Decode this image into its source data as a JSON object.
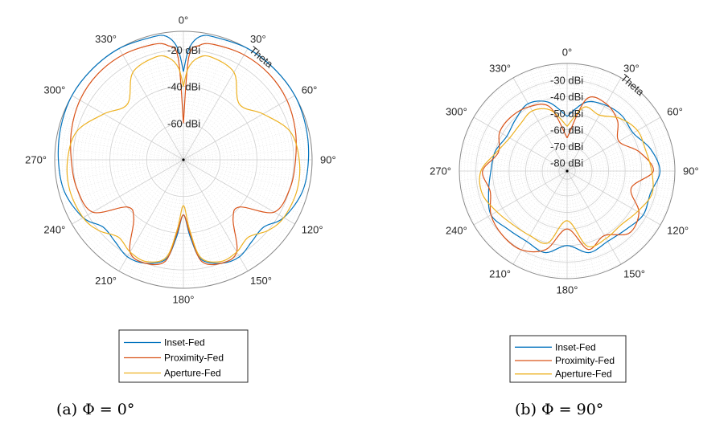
{
  "chart_data": [
    {
      "type": "polar-line",
      "caption": "(a) Φ = 0°",
      "theta_axis_label": "Theta",
      "theta_ticks": [
        "0°",
        "30°",
        "60°",
        "90°",
        "120°",
        "150°",
        "180°",
        "210°",
        "240°",
        "270°",
        "300°",
        "330°"
      ],
      "r_ticks": [
        {
          "value": -20,
          "label": "-20 dBi"
        },
        {
          "value": -40,
          "label": "-40 dBi"
        },
        {
          "value": -60,
          "label": "-60 dBi"
        }
      ],
      "rlim": [
        -80,
        -10
      ],
      "grid": true,
      "theta_deg": [
        0,
        3,
        8,
        15,
        30,
        45,
        60,
        75,
        90,
        105,
        120,
        130,
        140,
        150,
        160,
        170,
        175,
        180
      ],
      "series": [
        {
          "name": "Inset-Fed",
          "color": "#0072BD",
          "values": [
            -32,
            -19,
            -12,
            -11,
            -10,
            -9.5,
            -10,
            -11,
            -12,
            -13,
            -17,
            -23,
            -22,
            -19,
            -20,
            -25,
            -38,
            -50
          ]
        },
        {
          "name": "Proximity-Fed",
          "color": "#D95319",
          "values": [
            -60,
            -24,
            -17,
            -15,
            -14,
            -14,
            -15,
            -17,
            -19,
            -20,
            -23,
            -40,
            -38,
            -22,
            -20,
            -24,
            -40,
            -50
          ]
        },
        {
          "name": "Aperture-Fed",
          "color": "#EDB120",
          "values": [
            -40,
            -30,
            -24,
            -22,
            -25,
            -37,
            -30,
            -20,
            -17,
            -16,
            -17,
            -20,
            -25,
            -22,
            -21,
            -26,
            -42,
            -55
          ]
        }
      ]
    },
    {
      "type": "polar-line",
      "caption": "(b) Φ = 90°",
      "theta_axis_label": "Theta",
      "theta_ticks": [
        "0°",
        "30°",
        "60°",
        "90°",
        "120°",
        "150°",
        "180°",
        "210°",
        "240°",
        "270°",
        "300°",
        "330°"
      ],
      "r_ticks": [
        {
          "value": -30,
          "label": "-30 dBi"
        },
        {
          "value": -40,
          "label": "-40 dBi"
        },
        {
          "value": -50,
          "label": "-50 dBi"
        },
        {
          "value": -60,
          "label": "-60 dBi"
        },
        {
          "value": -70,
          "label": "-70 dBi"
        },
        {
          "value": -80,
          "label": "-80 dBi"
        }
      ],
      "rlim": [
        -85,
        -20
      ],
      "grid": true,
      "theta_deg": [
        0,
        15,
        30,
        45,
        60,
        75,
        90,
        105,
        120,
        135,
        150,
        165,
        180,
        195,
        210,
        225,
        240,
        255,
        270,
        285,
        300,
        315,
        330,
        345,
        360
      ],
      "series": [
        {
          "name": "Inset-Fed",
          "color": "#0072BD",
          "values": [
            -52,
            -42,
            -39,
            -38,
            -39,
            -33,
            -29,
            -33,
            -32,
            -35,
            -36,
            -34,
            -40,
            -34,
            -36,
            -35,
            -32,
            -36,
            -39,
            -40,
            -43,
            -41,
            -38,
            -42,
            -52
          ]
        },
        {
          "name": "Proximity-Fed",
          "color": "#D95319",
          "values": [
            -65,
            -40,
            -38,
            -42,
            -49,
            -40,
            -33,
            -45,
            -35,
            -32,
            -40,
            -36,
            -50,
            -36,
            -30,
            -30,
            -32,
            -37,
            -34,
            -42,
            -38,
            -38,
            -40,
            -45,
            -65
          ]
        },
        {
          "name": "Aperture-Fed",
          "color": "#EDB120",
          "values": [
            -58,
            -45,
            -46,
            -40,
            -36,
            -36,
            -34,
            -32,
            -36,
            -39,
            -38,
            -38,
            -55,
            -40,
            -40,
            -39,
            -36,
            -32,
            -33,
            -41,
            -45,
            -45,
            -43,
            -47,
            -58
          ]
        }
      ]
    }
  ]
}
